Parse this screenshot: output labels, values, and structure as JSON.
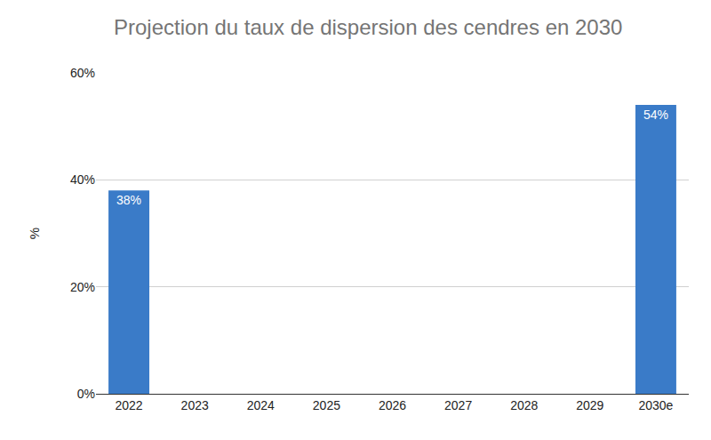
{
  "chart_data": {
    "type": "bar",
    "title": "Projection du taux de dispersion des cendres en 2030",
    "y_label": "%",
    "categories": [
      "2022",
      "2023",
      "2024",
      "2025",
      "2026",
      "2027",
      "2028",
      "2029",
      "2030e"
    ],
    "values": [
      38,
      null,
      null,
      null,
      null,
      null,
      null,
      null,
      54
    ],
    "value_labels": [
      "38%",
      null,
      null,
      null,
      null,
      null,
      null,
      null,
      "54%"
    ],
    "color": "#3a7bc8",
    "ylim": [
      0,
      60
    ],
    "yticks": [
      {
        "value": 0,
        "label": "0%"
      },
      {
        "value": 20,
        "label": "20%"
      },
      {
        "value": 40,
        "label": "40%"
      },
      {
        "value": 60,
        "label": "60%"
      }
    ],
    "grid": true,
    "data_labels": true
  }
}
